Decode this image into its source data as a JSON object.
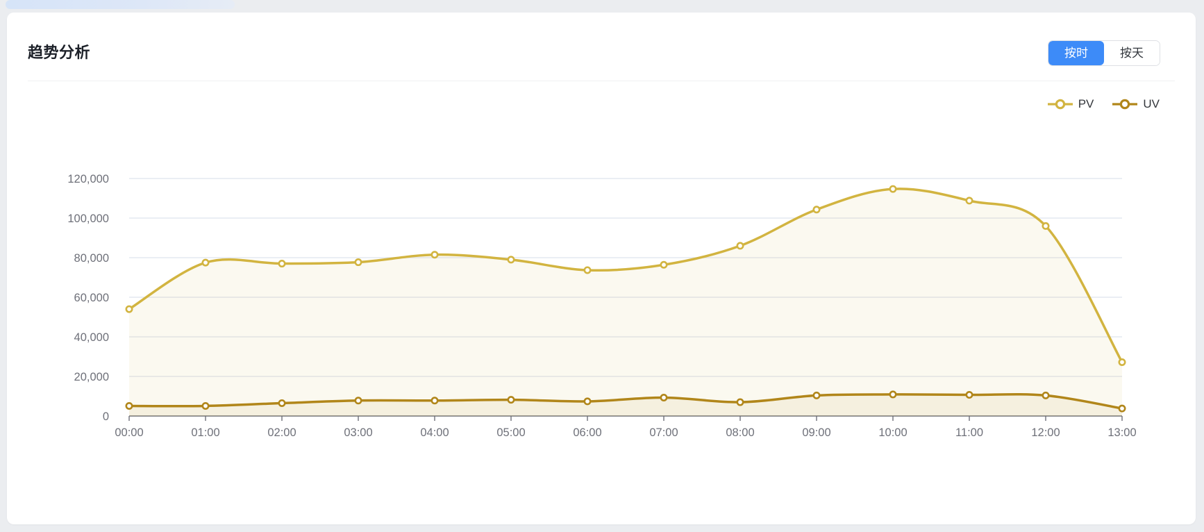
{
  "page": {
    "background_color": "#EBEDF0",
    "card_color": "#FFFFFF"
  },
  "header": {
    "title": "趋势分析"
  },
  "toggle": {
    "options": [
      {
        "label": "按时",
        "active": true
      },
      {
        "label": "按天",
        "active": false
      }
    ],
    "active_color": "#3D8BF8"
  },
  "chart_data": {
    "type": "line",
    "title": "",
    "x": [
      "00:00",
      "01:00",
      "02:00",
      "03:00",
      "04:00",
      "05:00",
      "06:00",
      "07:00",
      "08:00",
      "09:00",
      "10:00",
      "11:00",
      "12:00",
      "13:00"
    ],
    "series": [
      {
        "name": "PV",
        "color": "#D2B440",
        "values": [
          54000,
          77500,
          77000,
          77700,
          81500,
          79000,
          73700,
          76400,
          86000,
          104300,
          114700,
          108800,
          96000,
          27200
        ]
      },
      {
        "name": "UV",
        "color": "#B1861A",
        "values": [
          5100,
          5100,
          6500,
          7800,
          7800,
          8200,
          7400,
          9300,
          7000,
          10400,
          10900,
          10700,
          10400,
          3800
        ]
      }
    ],
    "ylim": [
      0,
      120000
    ],
    "y_ticks": [
      0,
      20000,
      40000,
      60000,
      80000,
      100000,
      120000
    ],
    "y_tick_labels": [
      "0",
      "20,000",
      "40,000",
      "60,000",
      "80,000",
      "100,000",
      "120,000"
    ],
    "xlabel": "",
    "ylabel": "",
    "grid": true,
    "smooth": true,
    "area": true,
    "area_opacity": 0.08,
    "marker": "hollow-circle",
    "legend_position": "top-right",
    "grid_color": "#E4E8F1",
    "axis_color": "#6E7079"
  }
}
